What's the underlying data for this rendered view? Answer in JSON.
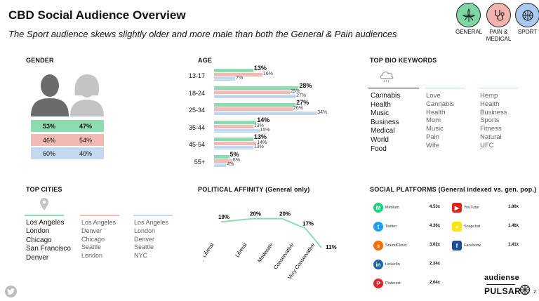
{
  "header": {
    "title": "CBD Social Audience Overview",
    "subtitle": "The Sport audience skews slightly older and more male than both the General & Pain audiences"
  },
  "segments": [
    {
      "label": "GENERAL",
      "color": "#7fd6a5",
      "icon": "cannabis-leaf-icon"
    },
    {
      "label": "PAIN &\nMEDICAL",
      "color": "#f3b4ae",
      "icon": "stethoscope-icon"
    },
    {
      "label": "SPORT",
      "color": "#a9c9ef",
      "icon": "sports-ball-icon"
    }
  ],
  "gender": {
    "title": "GENDER",
    "rows": [
      {
        "male": "53%",
        "female": "47%",
        "color": "#8ddcb0"
      },
      {
        "male": "46%",
        "female": "54%",
        "color": "#f2bab3"
      },
      {
        "male": "60%",
        "female": "40%",
        "color": "#c3d9f2"
      }
    ]
  },
  "age": {
    "title": "AGE",
    "groups": [
      {
        "label": "13-17",
        "general": 13,
        "pain": 16,
        "sport": 7
      },
      {
        "label": "18-24",
        "general": 28,
        "pain": 25,
        "sport": 27
      },
      {
        "label": "25-34",
        "general": 27,
        "pain": 26,
        "sport": 34
      },
      {
        "label": "35-44",
        "general": 14,
        "pain": 13,
        "sport": 15
      },
      {
        "label": "45-54",
        "general": 13,
        "pain": 14,
        "sport": 13
      },
      {
        "label": "55+",
        "general": 5,
        "pain": 6,
        "sport": 4
      }
    ],
    "colors": {
      "general": "#8ddcb0",
      "pain": "#f2bab3",
      "sport": "#c3d9f2"
    }
  },
  "keywords": {
    "title": "TOP BIO KEYWORDS",
    "general": [
      "Cannabis",
      "Health",
      "Music",
      "Business",
      "Medical",
      "World",
      "Food"
    ],
    "pain": [
      "Love",
      "Cannabis",
      "Health",
      "Mom",
      "Music",
      "Pain",
      "Wife"
    ],
    "sport": [
      "Hemp",
      "Health",
      "Business",
      "Sports",
      "Fitness",
      "Natural",
      "UFC"
    ]
  },
  "cities": {
    "title": "TOP CITIES",
    "general": [
      "Los Angeles",
      "London",
      "Chicago",
      "San Francisco",
      "Denver"
    ],
    "pain": [
      "Los Angeles",
      "Denver",
      "Chicago",
      "Seattle",
      "London"
    ],
    "sport": [
      "Los Angeles",
      "London",
      "Denver",
      "Seattle",
      "NYC"
    ]
  },
  "political": {
    "title": "POLITICAL AFFINITY (General only)",
    "chart_data": {
      "type": "line",
      "categories": [
        "Very Liberal",
        "Liberal",
        "Moderate",
        "Conservative",
        "Very Conservative"
      ],
      "values": [
        19,
        20,
        20,
        17,
        11
      ],
      "labels": [
        "19%",
        "20%",
        "20%",
        "17%",
        "11%"
      ],
      "color": "#8ddcb0"
    }
  },
  "social": {
    "title": "SOCIAL PLATFORMS (General indexed vs. gen. pop.)",
    "left": [
      {
        "name": "Medium",
        "value": "4.53x",
        "icon": "medium-icon",
        "color": "#12d47a"
      },
      {
        "name": "Twitter",
        "value": "4.36x",
        "icon": "twitter-icon",
        "color": "#1da1f2"
      },
      {
        "name": "SoundCloud",
        "value": "3.02x",
        "icon": "soundcloud-icon",
        "color": "#ff6a00"
      },
      {
        "name": "LinkedIn",
        "value": "2.34x",
        "icon": "linkedin-icon",
        "color": "#1a66b1"
      },
      {
        "name": "Pinterest",
        "value": "2.04x",
        "icon": "pinterest-icon",
        "color": "#e2232b"
      }
    ],
    "right": [
      {
        "name": "YouTube",
        "value": "1.80x",
        "icon": "youtube-icon",
        "color": "#e62117"
      },
      {
        "name": "Snapchat",
        "value": "1.48x",
        "icon": "snapchat-icon",
        "color": "#ffe500"
      },
      {
        "name": "Facebook",
        "value": "1.41x",
        "icon": "facebook-icon",
        "color": "#1c4f9a"
      }
    ]
  },
  "footer": {
    "brand1": "audiense",
    "brand2": "PULSAR",
    "page": "2"
  }
}
